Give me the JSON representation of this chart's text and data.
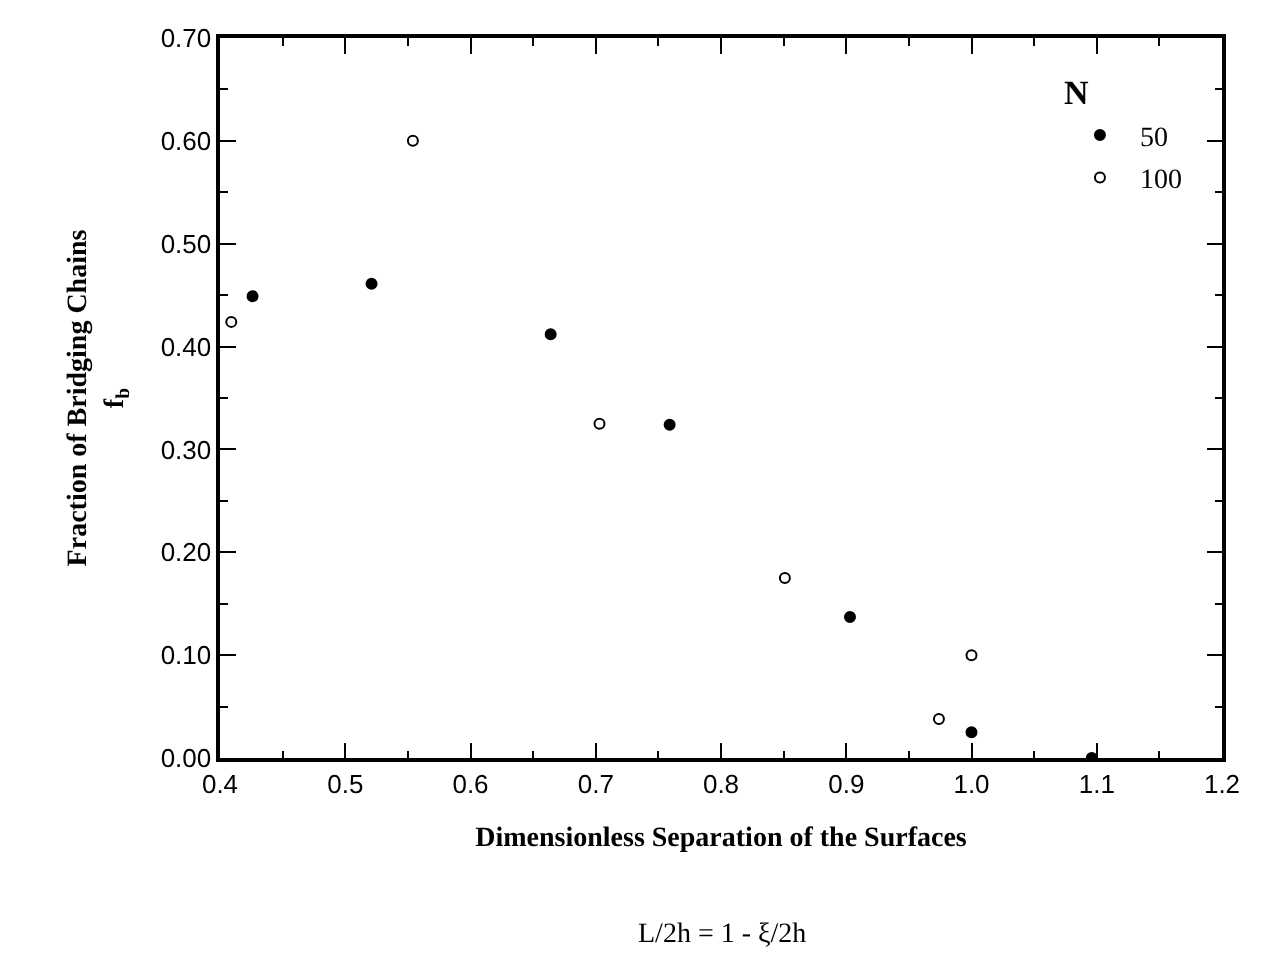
{
  "chart_data": {
    "type": "scatter",
    "xlabel": "Dimensionless Separation of the Surfaces",
    "ylabel": "Fraction of Bridging Chains\nf$_{b}$",
    "legend_title": "N",
    "annotations": [
      "L/2h = 1 - ξ/2h"
    ],
    "series": [
      {
        "name": "50",
        "color": "#000000",
        "x": [
          0.426,
          0.521,
          0.664,
          0.759,
          0.903,
          1.0,
          1.096
        ],
        "values": [
          0.449,
          0.461,
          0.412,
          0.324,
          0.137,
          0.025,
          0.0
        ]
      },
      {
        "name": "100",
        "color": "#ffffff",
        "x": [
          0.409,
          0.554,
          0.703,
          0.851,
          0.974,
          1.0
        ],
        "values": [
          0.424,
          0.6,
          0.325,
          0.175,
          0.038,
          0.1
        ]
      }
    ],
    "xlim": [
      0.4,
      1.2
    ],
    "xticks": [
      {
        "value": 0.4,
        "label": "0.4"
      },
      {
        "value": 0.5,
        "label": "0.5"
      },
      {
        "value": 0.6,
        "label": "0.6"
      },
      {
        "value": 0.7,
        "label": "0.7"
      },
      {
        "value": 0.8,
        "label": "0.8"
      },
      {
        "value": 0.9,
        "label": "0.9"
      },
      {
        "value": 1.0,
        "label": "1.0"
      },
      {
        "value": 1.1,
        "label": "1.1"
      },
      {
        "value": 1.2,
        "label": "1.2"
      }
    ],
    "ylim": [
      0.0,
      0.7
    ],
    "yticks": [
      {
        "value": 0.0,
        "label": "0.00"
      },
      {
        "value": 0.1,
        "label": "0.10"
      },
      {
        "value": 0.2,
        "label": "0.20"
      },
      {
        "value": 0.3,
        "label": "0.30"
      },
      {
        "value": 0.4,
        "label": "0.40"
      },
      {
        "value": 0.5,
        "label": "0.50"
      },
      {
        "value": 0.6,
        "label": "0.60"
      },
      {
        "value": 0.7,
        "label": "0.70"
      }
    ],
    "legend": "top right",
    "marker": "circle"
  }
}
